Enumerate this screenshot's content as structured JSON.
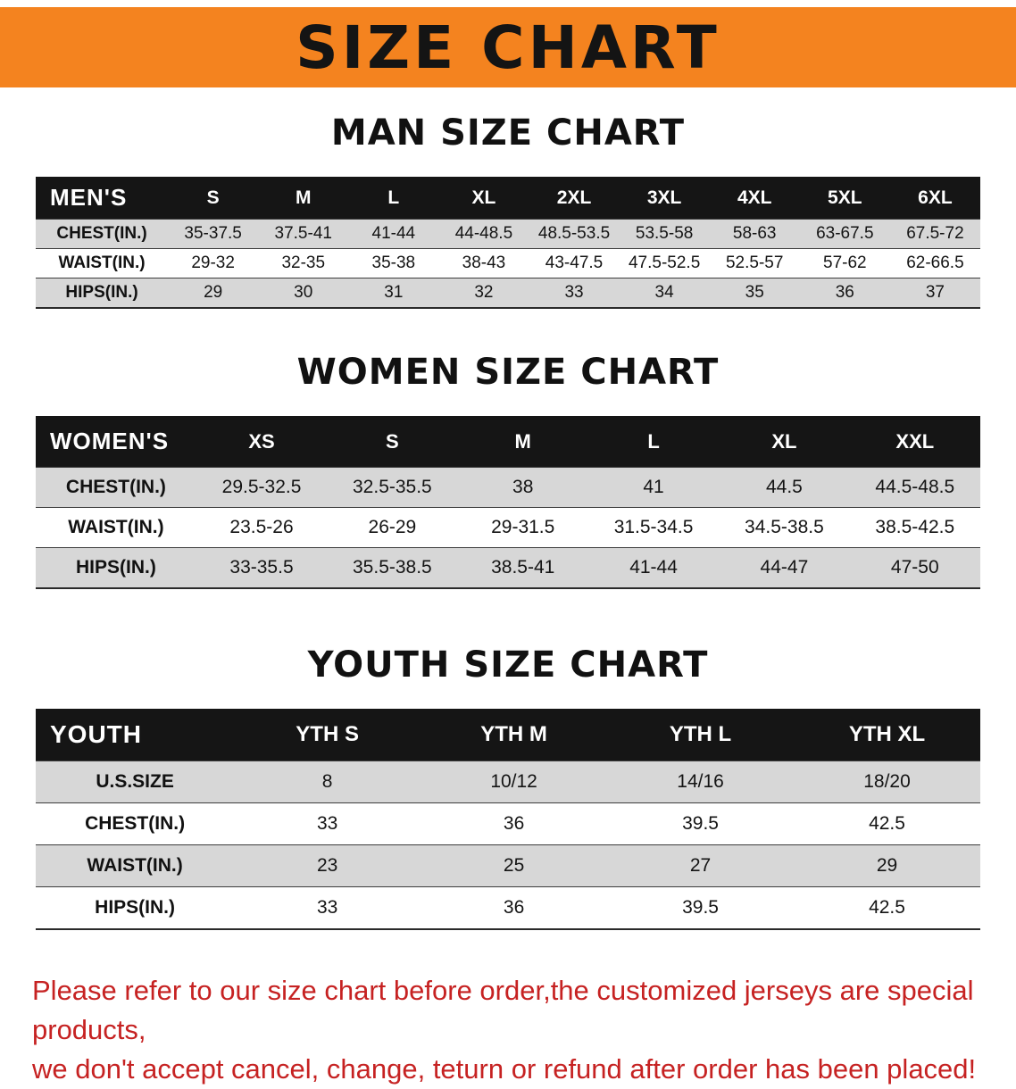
{
  "banner": {
    "title": "SIZE CHART",
    "bg_color": "#f4831f"
  },
  "sections": [
    {
      "heading": "MAN SIZE CHART",
      "header": [
        "MEN'S",
        "S",
        "M",
        "L",
        "XL",
        "2XL",
        "3XL",
        "4XL",
        "5XL",
        "6XL"
      ],
      "rows": [
        [
          "CHEST(IN.)",
          "35-37.5",
          "37.5-41",
          "41-44",
          "44-48.5",
          "48.5-53.5",
          "53.5-58",
          "58-63",
          "63-67.5",
          "67.5-72"
        ],
        [
          "WAIST(IN.)",
          "29-32",
          "32-35",
          "35-38",
          "38-43",
          "43-47.5",
          "47.5-52.5",
          "52.5-57",
          "57-62",
          "62-66.5"
        ],
        [
          "HIPS(IN.)",
          "29",
          "30",
          "31",
          "32",
          "33",
          "34",
          "35",
          "36",
          "37"
        ]
      ]
    },
    {
      "heading": "WOMEN SIZE CHART",
      "header": [
        "WOMEN'S",
        "XS",
        "S",
        "M",
        "L",
        "XL",
        "XXL"
      ],
      "rows": [
        [
          "CHEST(IN.)",
          "29.5-32.5",
          "32.5-35.5",
          "38",
          "41",
          "44.5",
          "44.5-48.5"
        ],
        [
          "WAIST(IN.)",
          "23.5-26",
          "26-29",
          "29-31.5",
          "31.5-34.5",
          "34.5-38.5",
          "38.5-42.5"
        ],
        [
          "HIPS(IN.)",
          "33-35.5",
          "35.5-38.5",
          "38.5-41",
          "41-44",
          "44-47",
          "47-50"
        ]
      ]
    },
    {
      "heading": "YOUTH SIZE CHART",
      "header": [
        "YOUTH",
        "YTH S",
        "YTH M",
        "YTH L",
        "YTH XL"
      ],
      "rows": [
        [
          "U.S.SIZE",
          "8",
          "10/12",
          "14/16",
          "18/20"
        ],
        [
          "CHEST(IN.)",
          "33",
          "36",
          "39.5",
          "42.5"
        ],
        [
          "WAIST(IN.)",
          "23",
          "25",
          "27",
          "29"
        ],
        [
          "HIPS(IN.)",
          "33",
          "36",
          "39.5",
          "42.5"
        ]
      ]
    }
  ],
  "notice": {
    "color": "#c62222",
    "lines": [
      "Please refer to our size chart before order,the customized jerseys are special products,",
      "we don't accept cancel, change, teturn or refund after order has been placed!"
    ]
  }
}
